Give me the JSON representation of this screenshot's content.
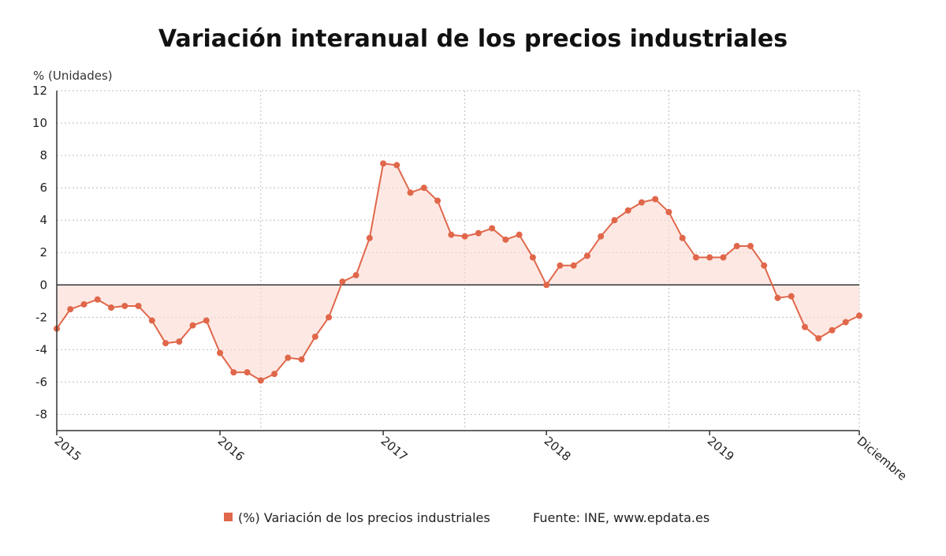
{
  "chart_data": {
    "type": "area",
    "title": "Variación interanual de los precios industriales",
    "ylabel": "% (Unidades)",
    "xlabel": "",
    "ylim": [
      -9,
      12
    ],
    "yticks": [
      12,
      10,
      8,
      6,
      4,
      2,
      0,
      -2,
      -4,
      -6,
      -8
    ],
    "x_ticks": [
      {
        "label": "2015",
        "index": 0
      },
      {
        "label": "2016",
        "index": 12
      },
      {
        "label": "2017",
        "index": 24
      },
      {
        "label": "2018",
        "index": 36
      },
      {
        "label": "2019",
        "index": 48
      },
      {
        "label": "Diciembre",
        "index": 59
      }
    ],
    "x_start": "2015-01",
    "x_end": "2019-12",
    "grid": true,
    "legend_position": "bottom",
    "series": [
      {
        "name": "(%) Variación de los precios industriales",
        "color": "#e0674a",
        "values": [
          -2.7,
          -1.5,
          -1.2,
          -0.9,
          -1.4,
          -1.3,
          -1.3,
          -2.2,
          -3.6,
          -3.5,
          -2.5,
          -2.2,
          -4.2,
          -5.4,
          -5.4,
          -5.9,
          -5.5,
          -4.5,
          -4.6,
          -3.2,
          -2.0,
          0.2,
          0.6,
          2.9,
          7.5,
          7.4,
          5.7,
          6.0,
          5.2,
          3.1,
          3.0,
          3.2,
          3.5,
          2.8,
          3.1,
          1.7,
          0.0,
          1.2,
          1.2,
          1.8,
          3.0,
          4.0,
          4.6,
          5.1,
          5.3,
          4.5,
          2.9,
          1.7,
          1.7,
          1.7,
          2.4,
          2.4,
          1.2,
          -0.8,
          -0.7,
          -2.6,
          -3.3,
          -2.8,
          -2.3,
          -1.9
        ]
      }
    ],
    "source": "Fuente: INE, www.epdata.es"
  }
}
